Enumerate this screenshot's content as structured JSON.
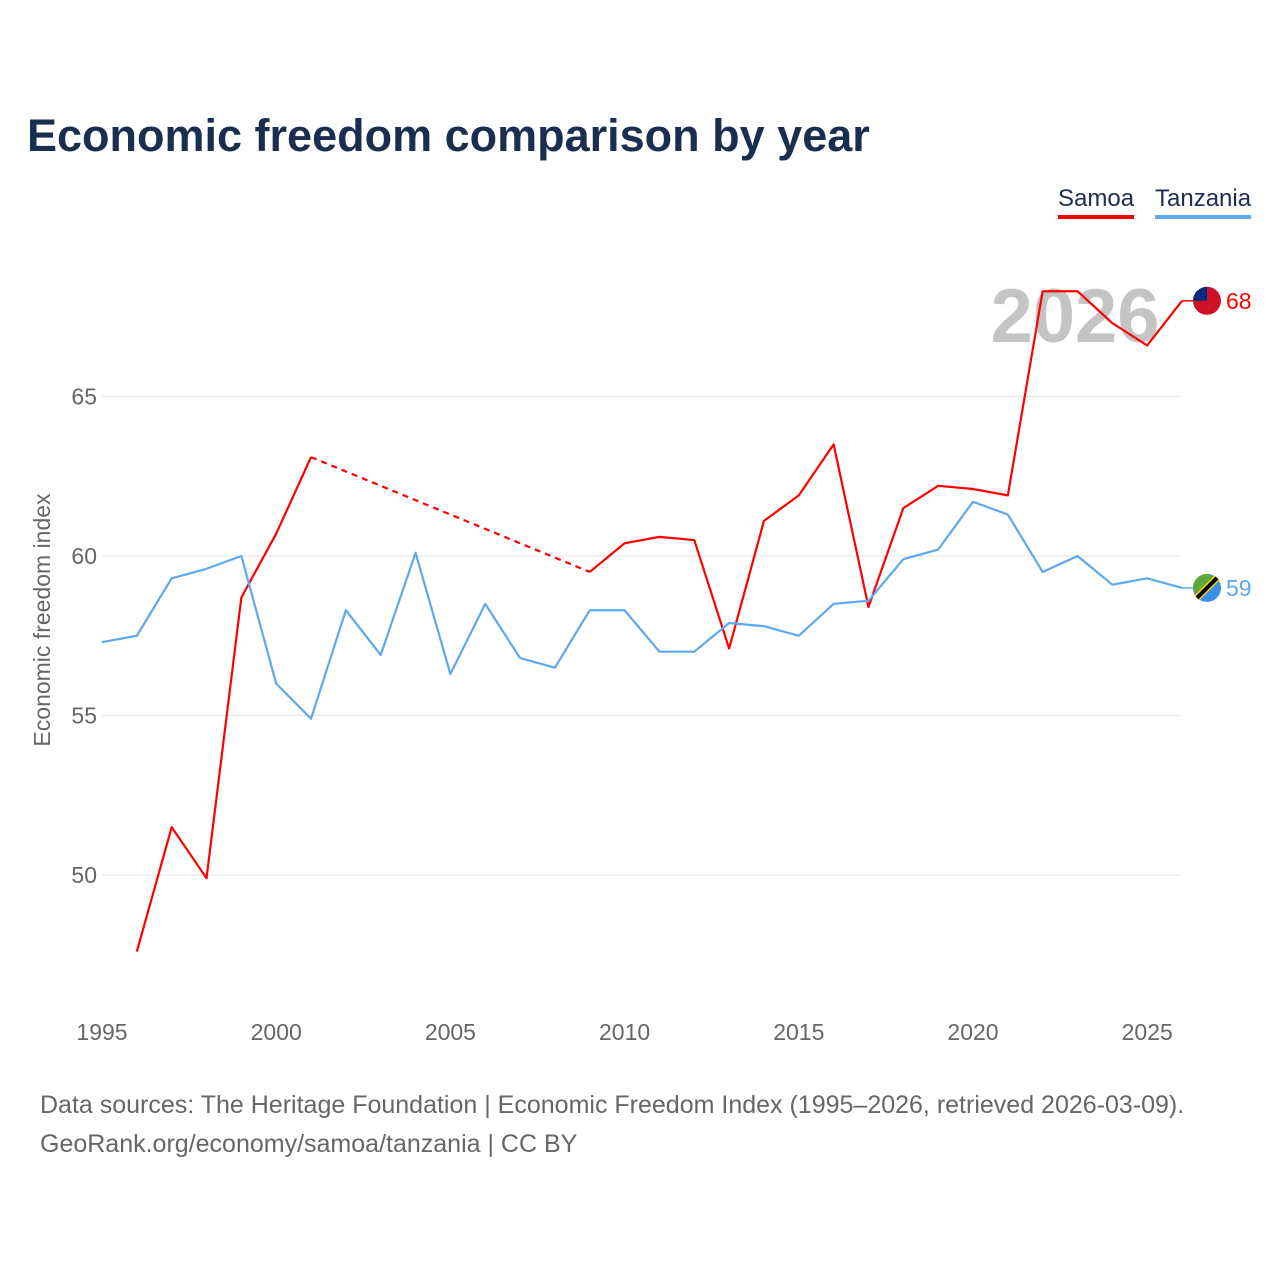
{
  "title": "Economic freedom comparison by year",
  "footer": {
    "line1": "Data sources: The Heritage Foundation | Economic Freedom Index (1995–2026, retrieved 2026-03-09).",
    "line2": "GeoRank.org/economy/samoa/tanzania | CC BY"
  },
  "year_watermark": "2026",
  "chart_data": {
    "type": "line",
    "title": "Economic freedom comparison by year",
    "xlabel": "",
    "ylabel": "Economic freedom index",
    "xlim": [
      1995,
      2026
    ],
    "ylim": [
      46,
      70
    ],
    "xticks": [
      "1995",
      "2000",
      "2005",
      "2010",
      "2015",
      "2020",
      "2025"
    ],
    "yticks": [
      "50",
      "55",
      "60",
      "65"
    ],
    "grid": true,
    "legend_position": "top-right",
    "x": [
      1995,
      1996,
      1997,
      1998,
      1999,
      2000,
      2001,
      2002,
      2003,
      2004,
      2005,
      2006,
      2007,
      2008,
      2009,
      2010,
      2011,
      2012,
      2013,
      2014,
      2015,
      2016,
      2017,
      2018,
      2019,
      2020,
      2021,
      2022,
      2023,
      2024,
      2025,
      2026
    ],
    "series": [
      {
        "name": "Samoa",
        "color": "#ff0000",
        "end_label": "68",
        "values": [
          null,
          47.6,
          51.5,
          49.9,
          58.7,
          60.7,
          63.1,
          null,
          null,
          null,
          null,
          null,
          null,
          null,
          59.5,
          60.4,
          60.6,
          60.5,
          57.1,
          61.1,
          61.9,
          63.5,
          58.4,
          61.5,
          62.2,
          62.1,
          61.9,
          68.3,
          68.3,
          67.3,
          66.6,
          68.0
        ]
      },
      {
        "name": "Tanzania",
        "color": "#5da8ee",
        "end_label": "59",
        "values": [
          57.3,
          57.5,
          59.3,
          59.6,
          60.0,
          56.0,
          54.9,
          58.3,
          56.9,
          60.1,
          56.3,
          58.5,
          56.8,
          56.5,
          58.3,
          58.3,
          57.0,
          57.0,
          57.9,
          57.8,
          57.5,
          58.5,
          58.6,
          59.9,
          60.2,
          61.7,
          61.3,
          59.5,
          60.0,
          59.1,
          59.3,
          59.0
        ]
      }
    ]
  }
}
